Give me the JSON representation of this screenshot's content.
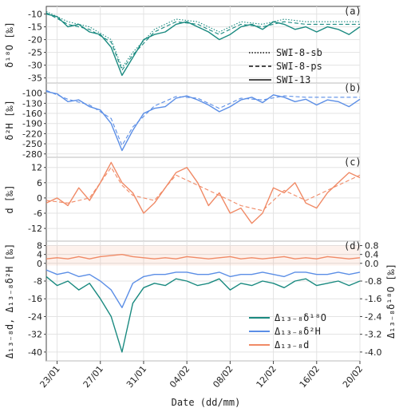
{
  "chart_data": {
    "type": "line",
    "x_range": [
      "2021-01-22",
      "2021-02-20"
    ],
    "xlabel": "Date (dd/mm)",
    "x_ticks": [
      "23/01",
      "27/01",
      "31/01",
      "04/02",
      "08/02",
      "12/02",
      "16/02",
      "20/02"
    ],
    "x_tick_dates": [
      "2021-01-23",
      "2021-01-27",
      "2021-01-31",
      "2021-02-04",
      "2021-02-08",
      "2021-02-12",
      "2021-02-16",
      "2021-02-20"
    ],
    "grid": true,
    "panels": [
      {
        "letter": "(a)",
        "ylabel": "δ¹⁸O [‰]",
        "ylim": [
          -37,
          -7
        ],
        "yticks": [
          "-10",
          "-15",
          "-20",
          "-25",
          "-30",
          "-35"
        ],
        "ytick_values": [
          -10,
          -15,
          -20,
          -25,
          -30,
          -35
        ],
        "color": "#1a8a80",
        "legend": [
          "SWI-8-sb",
          "SWI-8-ps",
          "SWI-13"
        ],
        "series": [
          {
            "style": "solid",
            "x": [
              "01-22",
              "01-23",
              "01-24",
              "01-25",
              "01-26",
              "01-27",
              "01-28",
              "01-29",
              "01-30",
              "01-31",
              "02-01",
              "02-02",
              "02-03",
              "02-04",
              "02-05",
              "02-06",
              "02-07",
              "02-08",
              "02-09",
              "02-10",
              "02-11",
              "02-12",
              "02-13",
              "02-14",
              "02-15",
              "02-16",
              "02-17",
              "02-18",
              "02-19",
              "02-20"
            ],
            "y": [
              -10,
              -11,
              -15,
              -14,
              -17,
              -18,
              -23,
              -34,
              -27,
              -20,
              -18,
              -17,
              -14,
              -13,
              -15,
              -17,
              -20,
              -18,
              -15,
              -14,
              -16,
              -13,
              -14,
              -16,
              -15,
              -17,
              -15,
              -16,
              -18,
              -15
            ]
          },
          {
            "style": "dashed",
            "x": [
              "01-22",
              "01-24",
              "01-26",
              "01-28",
              "01-29",
              "01-30",
              "02-01",
              "02-03",
              "02-05",
              "02-07",
              "02-09",
              "02-11",
              "02-13",
              "02-15",
              "02-17",
              "02-20"
            ],
            "y": [
              -9.5,
              -14,
              -16,
              -21,
              -32,
              -26,
              -17,
              -13,
              -14,
              -18,
              -14,
              -15,
              -13,
              -14,
              -14,
              -14
            ]
          },
          {
            "style": "dotted",
            "x": [
              "01-22",
              "01-24",
              "01-26",
              "01-28",
              "01-29",
              "01-30",
              "02-01",
              "02-03",
              "02-05",
              "02-07",
              "02-09",
              "02-11",
              "02-13",
              "02-15",
              "02-17",
              "02-20"
            ],
            "y": [
              -9,
              -13,
              -15,
              -20,
              -31,
              -25,
              -16,
              -12,
              -13,
              -17,
              -13,
              -14,
              -12,
              -13,
              -13,
              -13
            ]
          }
        ]
      },
      {
        "letter": "(b)",
        "ylabel": "δ²H [‰]",
        "ylim": [
          -290,
          -70
        ],
        "yticks": [
          "-100",
          "-130",
          "-160",
          "-190",
          "-220",
          "-250",
          "-280"
        ],
        "ytick_values": [
          -100,
          -130,
          -160,
          -190,
          -220,
          -250,
          -280
        ],
        "color": "#5b8ee6",
        "series": [
          {
            "style": "solid",
            "x": [
              "01-22",
              "01-23",
              "01-24",
              "01-25",
              "01-26",
              "01-27",
              "01-28",
              "01-29",
              "01-30",
              "01-31",
              "02-01",
              "02-02",
              "02-03",
              "02-04",
              "02-05",
              "02-06",
              "02-07",
              "02-08",
              "02-09",
              "02-10",
              "02-11",
              "02-12",
              "02-13",
              "02-14",
              "02-15",
              "02-16",
              "02-17",
              "02-18",
              "02-19",
              "02-20"
            ],
            "y": [
              -95,
              -102,
              -125,
              -120,
              -140,
              -150,
              -190,
              -270,
              -210,
              -160,
              -145,
              -140,
              -115,
              -108,
              -120,
              -135,
              -155,
              -140,
              -120,
              -112,
              -128,
              -105,
              -112,
              -125,
              -118,
              -135,
              -120,
              -125,
              -140,
              -118
            ]
          },
          {
            "style": "dashed",
            "x": [
              "01-22",
              "01-24",
              "01-26",
              "01-28",
              "01-29",
              "01-30",
              "02-01",
              "02-03",
              "02-05",
              "02-07",
              "02-09",
              "02-11",
              "02-13",
              "02-15",
              "02-17",
              "02-20"
            ],
            "y": [
              -92,
              -118,
              -135,
              -175,
              -255,
              -200,
              -138,
              -110,
              -115,
              -145,
              -115,
              -120,
              -108,
              -112,
              -112,
              -112
            ]
          }
        ]
      },
      {
        "letter": "(c)",
        "ylabel": "d [‰]",
        "ylim": [
          -17,
          16
        ],
        "yticks": [
          "12",
          "6",
          "0",
          "-6",
          "-12"
        ],
        "ytick_values": [
          12,
          6,
          0,
          -6,
          -12
        ],
        "color": "#f08a66",
        "series": [
          {
            "style": "solid",
            "x": [
              "01-22",
              "01-23",
              "01-24",
              "01-25",
              "01-26",
              "01-27",
              "01-28",
              "01-29",
              "01-30",
              "01-31",
              "02-01",
              "02-02",
              "02-03",
              "02-04",
              "02-05",
              "02-06",
              "02-07",
              "02-08",
              "02-09",
              "02-10",
              "02-11",
              "02-12",
              "02-13",
              "02-14",
              "02-15",
              "02-16",
              "02-17",
              "02-18",
              "02-19",
              "02-20"
            ],
            "y": [
              -2,
              0,
              -3,
              4,
              -1,
              6,
              14,
              6,
              2,
              -6,
              -2,
              4,
              10,
              12,
              6,
              -3,
              2,
              -6,
              -4,
              -10,
              -6,
              4,
              2,
              6,
              -2,
              -4,
              2,
              6,
              10,
              8
            ]
          },
          {
            "style": "dashed",
            "x": [
              "01-22",
              "01-24",
              "01-26",
              "01-28",
              "01-29",
              "01-30",
              "02-01",
              "02-03",
              "02-05",
              "02-07",
              "02-09",
              "02-11",
              "02-13",
              "02-15",
              "02-17",
              "02-20"
            ],
            "y": [
              -1,
              -2,
              0,
              12,
              5,
              1,
              -1,
              9,
              5,
              1,
              -3,
              -5,
              3,
              -1,
              3,
              9
            ]
          }
        ]
      },
      {
        "letter": "(d)",
        "ylabel": "Δ₁₃₋₈d, Δ₁₃₋₈δ²H [‰]",
        "ylabel_right": "Δ₁₃₋₈δ¹⁸O [‰]",
        "ylim": [
          -44,
          10
        ],
        "yticks": [
          "8",
          "4",
          "0",
          "-8",
          "-16",
          "-24",
          "-32",
          "-40"
        ],
        "ytick_values": [
          8,
          4,
          0,
          -8,
          -16,
          -24,
          -32,
          -40
        ],
        "ylim_right": [
          -4.4,
          1.0
        ],
        "yticks_right": [
          "0.8",
          "0.4",
          "0.0",
          "-0.8",
          "-1.6",
          "-2.4",
          "-3.2",
          "-4.0"
        ],
        "ytick_values_right": [
          0.8,
          0.4,
          0.0,
          -0.8,
          -1.6,
          -2.4,
          -3.2,
          -4.0
        ],
        "legend": [
          "Δ₁₃₋₈δ¹⁸O",
          "Δ₁₃₋₈δ²H",
          "Δ₁₃₋₈d"
        ],
        "series": [
          {
            "name": "Δ₁₃₋₈δ¹⁸O",
            "axis": "right",
            "color": "#1a8a80",
            "x": [
              "01-22",
              "01-23",
              "01-24",
              "01-25",
              "01-26",
              "01-27",
              "01-28",
              "01-29",
              "01-30",
              "01-31",
              "02-01",
              "02-02",
              "02-03",
              "02-04",
              "02-05",
              "02-06",
              "02-07",
              "02-08",
              "02-09",
              "02-10",
              "02-11",
              "02-12",
              "02-13",
              "02-14",
              "02-15",
              "02-16",
              "02-17",
              "02-18",
              "02-19",
              "02-20"
            ],
            "y": [
              -0.6,
              -1.0,
              -0.8,
              -1.2,
              -0.9,
              -1.6,
              -2.4,
              -4.0,
              -1.8,
              -1.1,
              -0.9,
              -1.0,
              -0.7,
              -0.8,
              -1.0,
              -0.9,
              -0.7,
              -1.2,
              -0.9,
              -1.0,
              -0.8,
              -0.9,
              -1.1,
              -0.8,
              -0.7,
              -1.0,
              -0.9,
              -0.8,
              -1.0,
              -0.8
            ]
          },
          {
            "name": "Δ₁₃₋₈δ²H",
            "axis": "left",
            "color": "#5b8ee6",
            "x": [
              "01-22",
              "01-23",
              "01-24",
              "01-25",
              "01-26",
              "01-27",
              "01-28",
              "01-29",
              "01-30",
              "01-31",
              "02-01",
              "02-02",
              "02-03",
              "02-04",
              "02-05",
              "02-06",
              "02-07",
              "02-08",
              "02-09",
              "02-10",
              "02-11",
              "02-12",
              "02-13",
              "02-14",
              "02-15",
              "02-16",
              "02-17",
              "02-18",
              "02-19",
              "02-20"
            ],
            "y": [
              -3,
              -5,
              -4,
              -6,
              -5,
              -8,
              -12,
              -20,
              -9,
              -6,
              -5,
              -5,
              -4,
              -4,
              -5,
              -5,
              -4,
              -6,
              -5,
              -5,
              -4,
              -5,
              -6,
              -4,
              -4,
              -5,
              -5,
              -4,
              -5,
              -4
            ]
          },
          {
            "name": "Δ₁₃₋₈d",
            "axis": "left",
            "color": "#f08a66",
            "x": [
              "01-22",
              "01-23",
              "01-24",
              "01-25",
              "01-26",
              "01-27",
              "01-28",
              "01-29",
              "01-30",
              "01-31",
              "02-01",
              "02-02",
              "02-03",
              "02-04",
              "02-05",
              "02-06",
              "02-07",
              "02-08",
              "02-09",
              "02-10",
              "02-11",
              "02-12",
              "02-13",
              "02-14",
              "02-15",
              "02-16",
              "02-17",
              "02-18",
              "02-19",
              "02-20"
            ],
            "y": [
              2,
              2.5,
              2,
              3,
              2,
              3,
              3.5,
              4,
              3,
              2.5,
              2,
              2.5,
              2,
              3,
              2.5,
              2,
              2.5,
              3,
              2,
              2.5,
              2,
              2.5,
              3,
              2,
              2.5,
              2,
              3,
              2.5,
              2,
              2.5
            ]
          }
        ]
      }
    ]
  }
}
